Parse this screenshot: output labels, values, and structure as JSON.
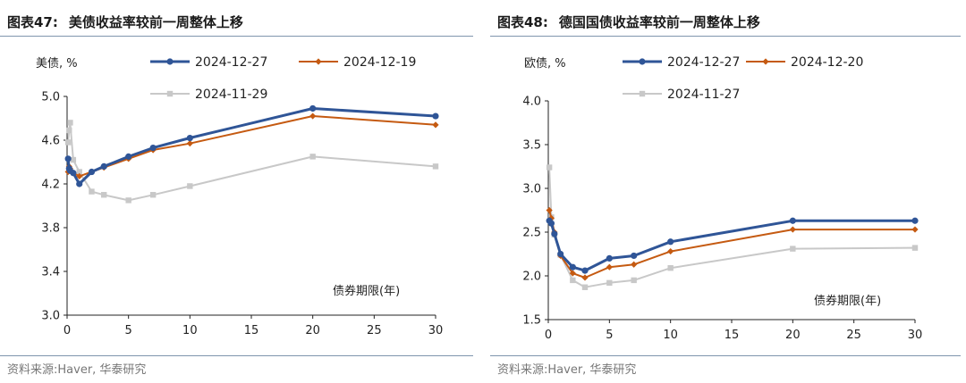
{
  "left": {
    "title_label": "图表47:",
    "title_text": "美债收益率较前一周整体上移",
    "source": "资料来源:Haver, 华泰研究",
    "chart_data": {
      "type": "line",
      "ylabel": "美债, %",
      "xlabel": "债券期限(年)",
      "xlim": [
        0,
        30
      ],
      "ylim": [
        3.0,
        5.0
      ],
      "xticks": [
        0,
        5,
        10,
        15,
        20,
        25,
        30
      ],
      "yticks": [
        3.0,
        3.4,
        3.8,
        4.2,
        4.6,
        5.0
      ],
      "ytick_labels": [
        "3.0",
        "3.4",
        "3.8",
        "4.2",
        "4.6",
        "5.0"
      ],
      "grid": false,
      "legend_position": "top",
      "series": [
        {
          "name": "2024-12-27",
          "color": "#2f5597",
          "marker": "circle",
          "x": [
            0.083,
            0.167,
            0.25,
            0.5,
            1,
            2,
            3,
            5,
            7,
            10,
            20,
            30
          ],
          "y": [
            4.43,
            4.34,
            4.32,
            4.3,
            4.2,
            4.31,
            4.36,
            4.45,
            4.53,
            4.62,
            4.89,
            4.82
          ]
        },
        {
          "name": "2024-12-19",
          "color": "#c55a11",
          "marker": "diamond",
          "x": [
            0.083,
            0.167,
            0.25,
            0.5,
            1,
            2,
            3,
            5,
            7,
            10,
            20,
            30
          ],
          "y": [
            4.31,
            4.36,
            4.34,
            4.3,
            4.27,
            4.31,
            4.35,
            4.43,
            4.51,
            4.57,
            4.82,
            4.74
          ]
        },
        {
          "name": "2024-11-29",
          "color": "#c8c8c8",
          "marker": "square",
          "x": [
            0.083,
            0.167,
            0.25,
            0.5,
            1,
            2,
            3,
            5,
            7,
            10,
            20,
            30
          ],
          "y": [
            4.58,
            4.69,
            4.76,
            4.42,
            4.31,
            4.13,
            4.1,
            4.05,
            4.1,
            4.18,
            4.45,
            4.36
          ]
        }
      ]
    }
  },
  "right": {
    "title_label": "图表48:",
    "title_text": "德国国债收益率较前一周整体上移",
    "source": "资料来源:Haver, 华泰研究",
    "chart_data": {
      "type": "line",
      "ylabel": "欧债, %",
      "xlabel": "债券期限(年)",
      "xlim": [
        0,
        30
      ],
      "ylim": [
        1.5,
        4.0
      ],
      "xticks": [
        0,
        5,
        10,
        15,
        20,
        25,
        30
      ],
      "yticks": [
        1.5,
        2.0,
        2.5,
        3.0,
        3.5,
        4.0
      ],
      "ytick_labels": [
        "1.5",
        "2.0",
        "2.5",
        "3.0",
        "3.5",
        "4.0"
      ],
      "grid": false,
      "legend_position": "top",
      "series": [
        {
          "name": "2024-12-27",
          "color": "#2f5597",
          "marker": "circle",
          "x": [
            0.083,
            0.25,
            0.5,
            1,
            2,
            3,
            5,
            7,
            10,
            20,
            30
          ],
          "y": [
            2.63,
            2.6,
            2.48,
            2.25,
            2.1,
            2.06,
            2.2,
            2.23,
            2.39,
            2.63,
            2.63
          ]
        },
        {
          "name": "2024-12-20",
          "color": "#c55a11",
          "marker": "diamond",
          "x": [
            0.083,
            0.25,
            0.5,
            1,
            2,
            3,
            5,
            7,
            10,
            20,
            30
          ],
          "y": [
            2.75,
            2.66,
            2.5,
            2.23,
            2.03,
            1.98,
            2.1,
            2.13,
            2.28,
            2.53,
            2.53
          ]
        },
        {
          "name": "2024-11-27",
          "color": "#c8c8c8",
          "marker": "square",
          "x": [
            0.083,
            0.25,
            0.5,
            1,
            2,
            3,
            5,
            7,
            10,
            20,
            30
          ],
          "y": [
            3.24,
            2.67,
            2.47,
            2.24,
            1.95,
            1.87,
            1.92,
            1.95,
            2.09,
            2.31,
            2.32
          ]
        }
      ]
    }
  }
}
